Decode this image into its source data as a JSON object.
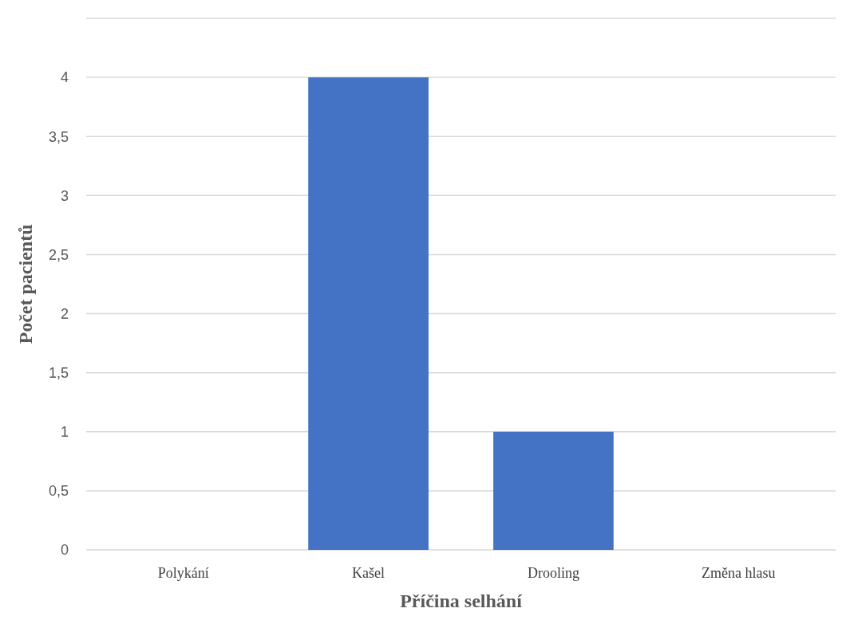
{
  "chart_data": {
    "type": "bar",
    "xlabel": "Příčina selhání",
    "ylabel": "Počet pacientů",
    "categories": [
      "Polykání",
      "Kašel",
      "Drooling",
      "Změna hlasu"
    ],
    "values": [
      0,
      4,
      1,
      0
    ],
    "color": "#4472c4",
    "ylim": [
      0,
      4.5
    ],
    "yticks": [
      0,
      {
        "value": 0.5,
        "label": "0,5"
      },
      1,
      {
        "value": 1.5,
        "label": "1,5"
      },
      2,
      {
        "value": 2.5,
        "label": "2,5"
      },
      3,
      {
        "value": 3.5,
        "label": "3,5"
      },
      4,
      {
        "value": 4.5,
        "label": null
      }
    ],
    "grid": "y"
  }
}
